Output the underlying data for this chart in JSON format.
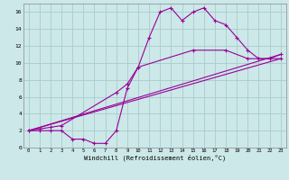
{
  "background_color": "#cce8e8",
  "grid_color": "#aacccc",
  "line_color": "#990099",
  "xlim": [
    -0.5,
    23.5
  ],
  "ylim": [
    0,
    17
  ],
  "xticks": [
    0,
    1,
    2,
    3,
    4,
    5,
    6,
    7,
    8,
    9,
    10,
    11,
    12,
    13,
    14,
    15,
    16,
    17,
    18,
    19,
    20,
    21,
    22,
    23
  ],
  "yticks": [
    0,
    2,
    4,
    6,
    8,
    10,
    12,
    14,
    16
  ],
  "xlabel": "Windchill (Refroidissement éolien,°C)",
  "curve1_x": [
    0,
    1,
    2,
    3,
    4,
    5,
    6,
    7,
    8,
    9,
    10,
    11,
    12,
    13,
    14,
    15,
    16,
    17,
    18,
    19,
    20,
    21,
    22,
    23
  ],
  "curve1_y": [
    2,
    2,
    2,
    2,
    1,
    1,
    0.5,
    0.5,
    2,
    7,
    9.5,
    13,
    16,
    16.5,
    15,
    16,
    16.5,
    15,
    14.5,
    13,
    11.5,
    10.5,
    10.5,
    11
  ],
  "curve2_x": [
    0,
    1,
    2,
    3,
    8,
    9,
    10,
    15,
    18,
    20,
    21,
    22,
    23
  ],
  "curve2_y": [
    2,
    2.2,
    2.4,
    2.6,
    6.5,
    7.5,
    9.5,
    11.5,
    11.5,
    10.5,
    10.5,
    10.5,
    10.5
  ],
  "line1_x": [
    0,
    23
  ],
  "line1_y": [
    2,
    10.5
  ],
  "line2_x": [
    0,
    23
  ],
  "line2_y": [
    2,
    11.0
  ]
}
